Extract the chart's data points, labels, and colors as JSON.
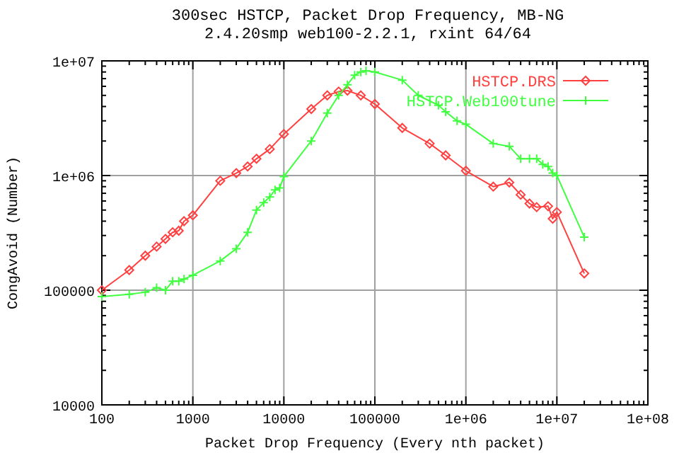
{
  "chart_data": {
    "type": "line",
    "title": "300sec HSTCP, Packet Drop Frequency, MB-NG",
    "subtitle": "2.4.20smp web100-2.2.1, rxint 64/64",
    "xlabel": "Packet Drop Frequency (Every nth packet)",
    "ylabel": "CongAvoid (Number)",
    "log": "xy",
    "grid": true,
    "legend": "top right",
    "xlim": [
      100,
      100000000
    ],
    "xticks": [
      100,
      1000,
      10000,
      100000,
      {
        "value": 1000000,
        "label": "1e+06"
      },
      {
        "value": 10000000,
        "label": "1e+07"
      },
      {
        "value": 100000000,
        "label": "1e+08"
      }
    ],
    "ylim": [
      10000,
      10000000
    ],
    "yticks": [
      10000,
      100000,
      {
        "value": 1000000,
        "label": "1e+06"
      },
      {
        "value": 10000000,
        "label": "1e+07"
      }
    ],
    "series": [
      {
        "name": "HSTCP.DRS",
        "color": "#ff4040",
        "marker": "diamond",
        "x": [
          100,
          200,
          300,
          400,
          500,
          600,
          700,
          800,
          1000,
          2000,
          3000,
          4000,
          5000,
          7000,
          10000,
          20000,
          30000,
          40000,
          50000,
          70000,
          100000,
          200000,
          400000,
          600000,
          1000000,
          2000000,
          3000000,
          4000000,
          5000000,
          6000000,
          8000000,
          9000000,
          10000000,
          20000000
        ],
        "values": [
          100000,
          150000,
          200000,
          240000,
          280000,
          320000,
          330000,
          400000,
          450000,
          900000,
          1050000,
          1200000,
          1400000,
          1700000,
          2300000,
          3800000,
          5000000,
          5400000,
          5500000,
          5000000,
          4200000,
          2600000,
          1900000,
          1500000,
          1100000,
          800000,
          870000,
          680000,
          570000,
          530000,
          540000,
          420000,
          480000,
          140000
        ]
      },
      {
        "name": "HSTCP.Web100tune",
        "color": "#40ff40",
        "marker": "cross",
        "x": [
          100,
          200,
          300,
          400,
          500,
          600,
          700,
          800,
          1000,
          2000,
          3000,
          4000,
          5000,
          6000,
          7000,
          8000,
          9000,
          10000,
          20000,
          30000,
          40000,
          50000,
          60000,
          70000,
          80000,
          100000,
          200000,
          300000,
          500000,
          600000,
          800000,
          1000000,
          2000000,
          3000000,
          4000000,
          5000000,
          6000000,
          7000000,
          8000000,
          9000000,
          10000000,
          20000000
        ],
        "values": [
          88000,
          92000,
          96000,
          105000,
          100000,
          120000,
          120000,
          125000,
          135000,
          180000,
          230000,
          320000,
          500000,
          580000,
          650000,
          750000,
          780000,
          980000,
          2000000,
          3500000,
          5000000,
          6200000,
          7500000,
          8000000,
          8200000,
          8000000,
          6800000,
          5000000,
          4100000,
          3600000,
          3000000,
          2800000,
          1900000,
          1800000,
          1400000,
          1400000,
          1400000,
          1250000,
          1200000,
          1050000,
          1000000,
          290000
        ]
      }
    ]
  }
}
